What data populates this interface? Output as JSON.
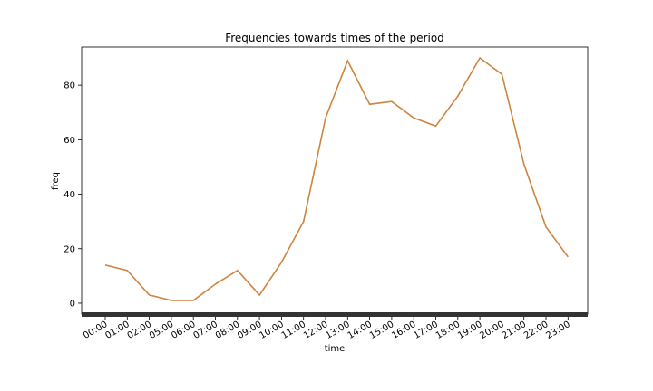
{
  "chart_data": {
    "type": "line",
    "title": "Frequencies towards times of the period",
    "xlabel": "time",
    "ylabel": "freq",
    "categories": [
      "00:00",
      "01:00",
      "02:00",
      "05:00",
      "06:00",
      "07:00",
      "08:00",
      "09:00",
      "10:00",
      "11:00",
      "12:00",
      "13:00",
      "14:00",
      "15:00",
      "16:00",
      "17:00",
      "18:00",
      "19:00",
      "20:00",
      "21:00",
      "22:00",
      "23:00"
    ],
    "values": [
      14,
      12,
      3,
      1,
      1,
      7,
      12,
      3,
      15,
      30,
      68,
      89,
      73,
      74,
      68,
      65,
      76,
      90,
      84,
      51,
      28,
      17
    ],
    "yticks": [
      0,
      20,
      40,
      60,
      80
    ],
    "ylim": [
      -4,
      94
    ],
    "line_color": "#cd853f",
    "grid": false
  }
}
